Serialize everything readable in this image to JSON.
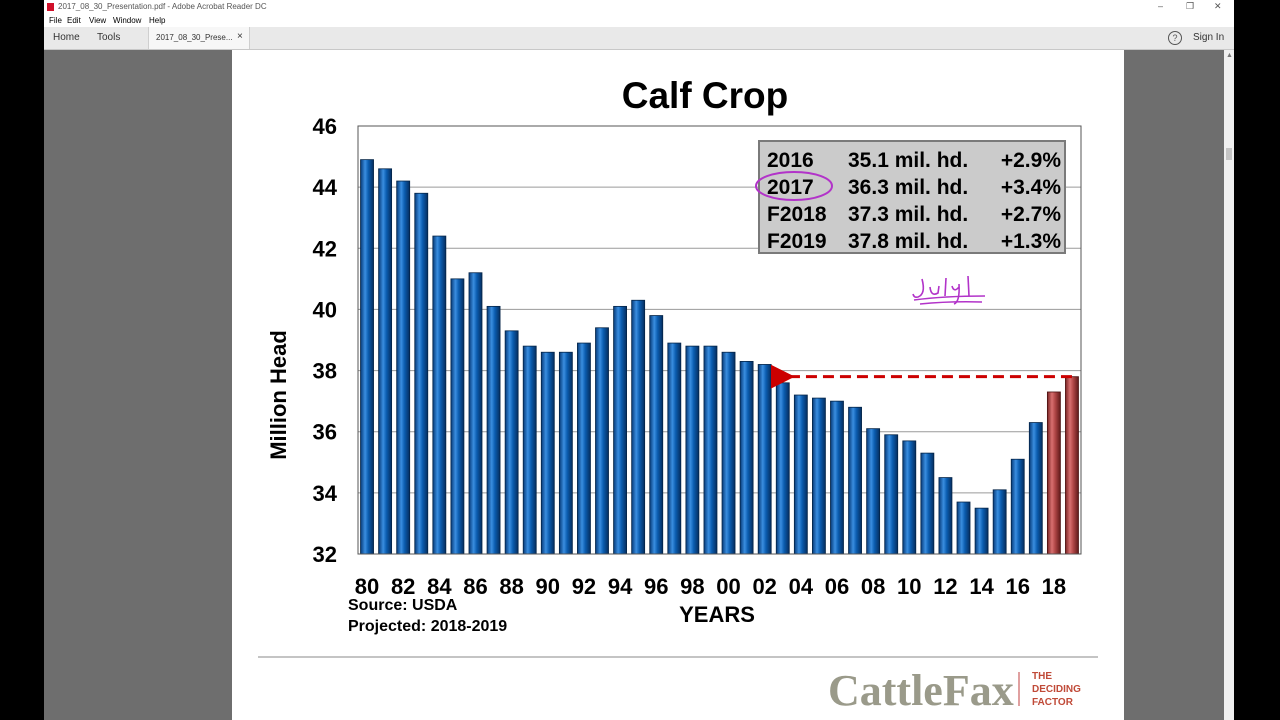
{
  "window": {
    "title": "2017_08_30_Presentation.pdf - Adobe Acrobat Reader DC",
    "controls": [
      "–",
      "❐",
      "✕"
    ]
  },
  "menu": [
    "File",
    "Edit",
    "View",
    "Window",
    "Help"
  ],
  "toolbar": {
    "home": "Home",
    "tools": "Tools",
    "tab_label": "2017_08_30_Prese...",
    "tab_close": "×",
    "help": "?",
    "sign_in": "Sign In"
  },
  "chart_data": {
    "type": "bar",
    "title": "Calf Crop",
    "xlabel": "YEARS",
    "ylabel": "Million Head",
    "ylim": [
      32,
      46
    ],
    "yticks": [
      "32",
      "34",
      "36",
      "38",
      "40",
      "42",
      "44",
      "46"
    ],
    "x_tick_labels": [
      "80",
      "82",
      "84",
      "86",
      "88",
      "90",
      "92",
      "94",
      "96",
      "98",
      "00",
      "02",
      "04",
      "06",
      "08",
      "10",
      "12",
      "14",
      "16",
      "18"
    ],
    "categories": [
      "1980",
      "1981",
      "1982",
      "1983",
      "1984",
      "1985",
      "1986",
      "1987",
      "1988",
      "1989",
      "1990",
      "1991",
      "1992",
      "1993",
      "1994",
      "1995",
      "1996",
      "1997",
      "1998",
      "1999",
      "2000",
      "2001",
      "2002",
      "2003",
      "2004",
      "2005",
      "2006",
      "2007",
      "2008",
      "2009",
      "2010",
      "2011",
      "2012",
      "2013",
      "2014",
      "2015",
      "2016",
      "2017",
      "2018",
      "2019"
    ],
    "values": [
      44.9,
      44.6,
      44.2,
      43.8,
      42.4,
      41.0,
      41.2,
      40.1,
      39.3,
      38.8,
      38.6,
      38.6,
      38.9,
      39.4,
      40.1,
      40.3,
      39.8,
      38.9,
      38.8,
      38.8,
      38.6,
      38.3,
      38.2,
      37.6,
      37.2,
      37.1,
      37.0,
      36.8,
      36.1,
      35.9,
      35.7,
      35.3,
      34.5,
      33.7,
      33.5,
      34.1,
      35.1,
      36.3,
      37.3,
      37.8
    ],
    "projected_from": "2018",
    "colors": {
      "actual": "#0b5db0",
      "projected": "#b04646"
    },
    "reference_line": {
      "y": 37.8,
      "color": "#cc0000",
      "style": "dashed-arrow"
    },
    "grid": true,
    "table": [
      {
        "year": "2016",
        "value": "35.1 mil. hd.",
        "change": "+2.9%"
      },
      {
        "year": "2017",
        "value": "36.3 mil. hd.",
        "change": "+3.4%"
      },
      {
        "year": "F2018",
        "value": "37.3 mil. hd.",
        "change": "+2.7%"
      },
      {
        "year": "F2019",
        "value": "37.8 mil. hd.",
        "change": "+1.3%"
      }
    ],
    "annotations": [
      "Source: USDA",
      "Projected: 2018-2019"
    ],
    "handwriting": "July 1"
  },
  "logo": {
    "name": "CattleFax",
    "tagline": [
      "THE",
      "DECIDING",
      "FACTOR"
    ]
  }
}
